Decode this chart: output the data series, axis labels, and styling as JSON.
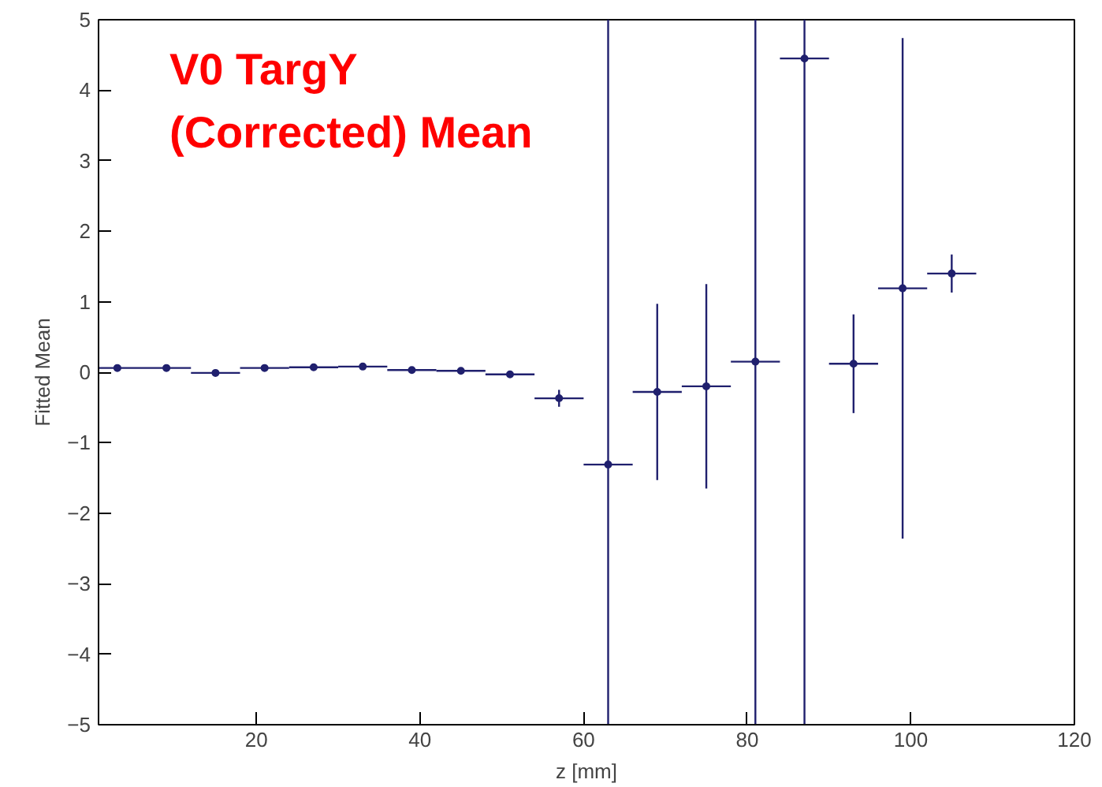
{
  "chart_data": {
    "type": "scatter",
    "xlabel": "z [mm]",
    "ylabel": "Fitted Mean",
    "annotations": [
      "V0 TargY",
      "(Corrected) Mean"
    ],
    "x": [
      3,
      9,
      15,
      21,
      27,
      33,
      39,
      45,
      51,
      57,
      63,
      69,
      75,
      81,
      87,
      93,
      99,
      105
    ],
    "series": [
      {
        "color": "#20206e",
        "values": [
          0.06,
          0.06,
          -0.01,
          0.06,
          0.07,
          0.08,
          0.03,
          0.02,
          -0.03,
          -0.37,
          -1.31,
          -0.28,
          -0.2,
          0.15,
          4.45,
          0.12,
          1.19,
          1.4
        ],
        "errors": [
          0.04,
          0.04,
          0.04,
          0.04,
          0.04,
          0.04,
          0.04,
          0.04,
          0.04,
          0.12,
          [
            -5,
            5
          ],
          1.25,
          1.45,
          [
            -5,
            5
          ],
          [
            -5,
            5
          ],
          0.7,
          3.55,
          0.27
        ],
        "xerrors": [
          3,
          3,
          3,
          3,
          3,
          3,
          3,
          3,
          3,
          3,
          3,
          3,
          3,
          3,
          3,
          3,
          3,
          3
        ]
      }
    ],
    "marker": "circle",
    "xlim": [
      0.7,
      120
    ],
    "ylim": [
      -5,
      5
    ],
    "xticks": [
      20,
      40,
      60,
      80,
      100,
      120
    ],
    "yticks": [
      {
        "value": -5,
        "label": "−5"
      },
      {
        "value": -4,
        "label": "−4"
      },
      {
        "value": -3,
        "label": "−3"
      },
      {
        "value": -2,
        "label": "−2"
      },
      {
        "value": -1,
        "label": "−1"
      },
      0,
      1,
      2,
      3,
      4,
      5
    ],
    "grid": false
  }
}
